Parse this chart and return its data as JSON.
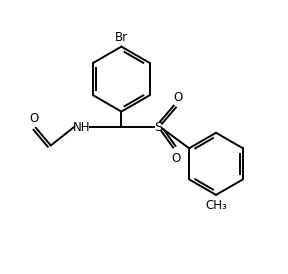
{
  "bg_color": "#ffffff",
  "line_color": "#000000",
  "line_width": 1.4,
  "font_size": 8.5,
  "figsize": [
    2.88,
    2.74
  ],
  "dpi": 100,
  "xlim": [
    0,
    10
  ],
  "ylim": [
    0,
    9.5
  ]
}
